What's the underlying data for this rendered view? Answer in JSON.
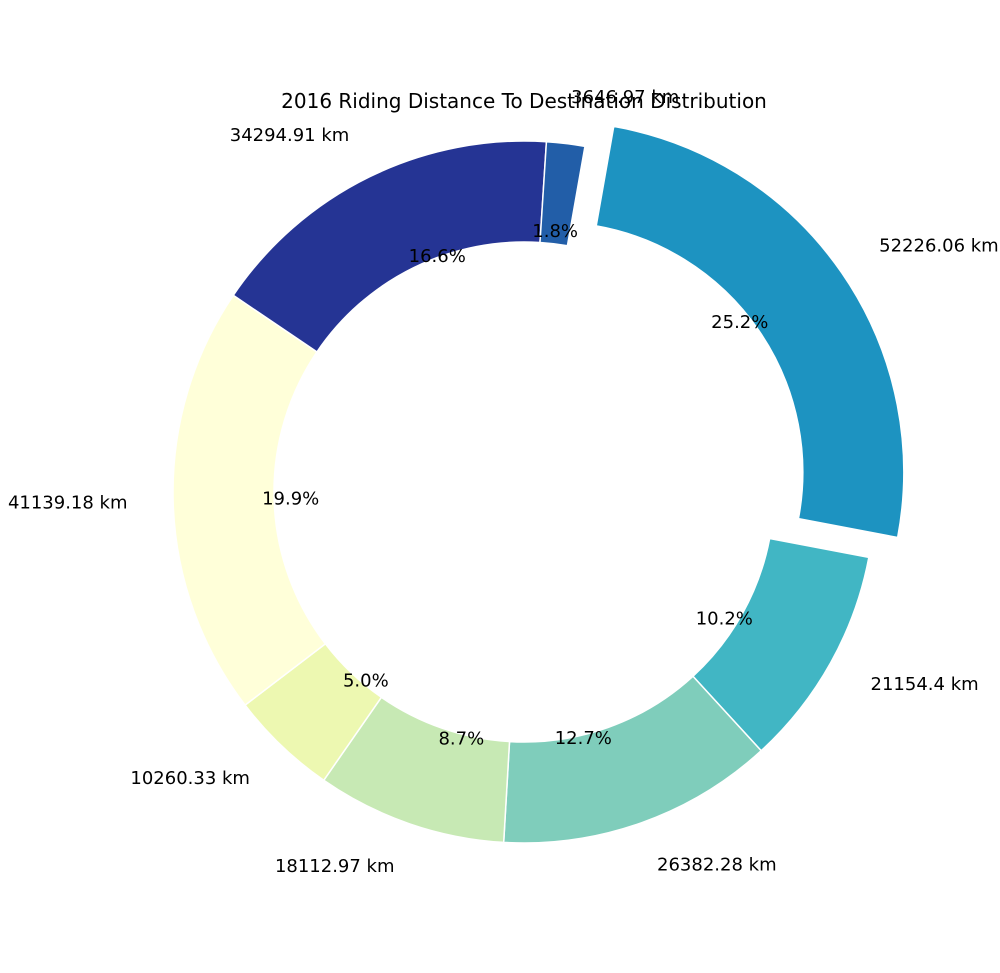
{
  "chart_data": {
    "type": "pie",
    "style": "donut",
    "title": "2016 Riding Distance To Destination Distribution",
    "slices": [
      {
        "value": 52226.06,
        "label": "52226.06 km",
        "percent_label": "25.2%",
        "color": "#1d93c1",
        "exploded": true
      },
      {
        "value": 21154.4,
        "label": "21154.4 km",
        "percent_label": "10.2%",
        "color": "#41b6c4",
        "exploded": false
      },
      {
        "value": 26382.28,
        "label": "26382.28 km",
        "percent_label": "12.7%",
        "color": "#7fcdbb",
        "exploded": false
      },
      {
        "value": 18112.97,
        "label": "18112.97 km",
        "percent_label": "8.7%",
        "color": "#c7e9b4",
        "exploded": false
      },
      {
        "value": 10260.33,
        "label": "10260.33 km",
        "percent_label": "5.0%",
        "color": "#edf8b1",
        "exploded": false
      },
      {
        "value": 41139.18,
        "label": "41139.18 km",
        "percent_label": "19.9%",
        "color": "#ffffd9",
        "exploded": false
      },
      {
        "value": 34294.91,
        "label": "34294.91 km",
        "percent_label": "16.6%",
        "color": "#253494",
        "exploded": false
      },
      {
        "value": 3646.97,
        "label": "3646.97 km",
        "percent_label": "1.8%",
        "color": "#225ea8",
        "exploded": false
      }
    ],
    "start_angle_deg": 80,
    "direction": "clockwise",
    "legend": "none"
  }
}
